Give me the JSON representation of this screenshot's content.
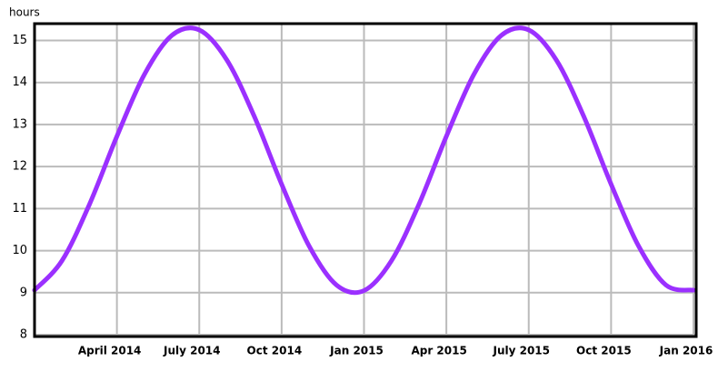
{
  "chart_data": {
    "type": "line",
    "y_label": "hours",
    "categories": [
      null,
      null,
      null,
      "April 2014",
      null,
      null,
      "July 2014",
      null,
      null,
      "Oct 2014",
      null,
      null,
      "Jan 2015",
      null,
      null,
      "Apr 2015",
      null,
      null,
      "July 2015",
      null,
      null,
      "Oct 2015",
      null,
      null,
      "Jan 2016"
    ],
    "series": [
      {
        "color": "#9b30ff",
        "values": [
          9.06,
          9.76,
          11.1,
          12.72,
          14.19,
          15.12,
          15.25,
          14.54,
          13.2,
          11.58,
          10.11,
          9.18,
          9.05,
          9.76,
          11.1,
          12.72,
          14.19,
          15.12,
          15.25,
          14.54,
          13.2,
          11.58,
          10.11,
          9.18,
          9.06
        ]
      }
    ],
    "ylim": [
      8,
      15.4
    ],
    "yticks": [
      8,
      9,
      10,
      11,
      12,
      13,
      14,
      15
    ],
    "grid": true
  }
}
